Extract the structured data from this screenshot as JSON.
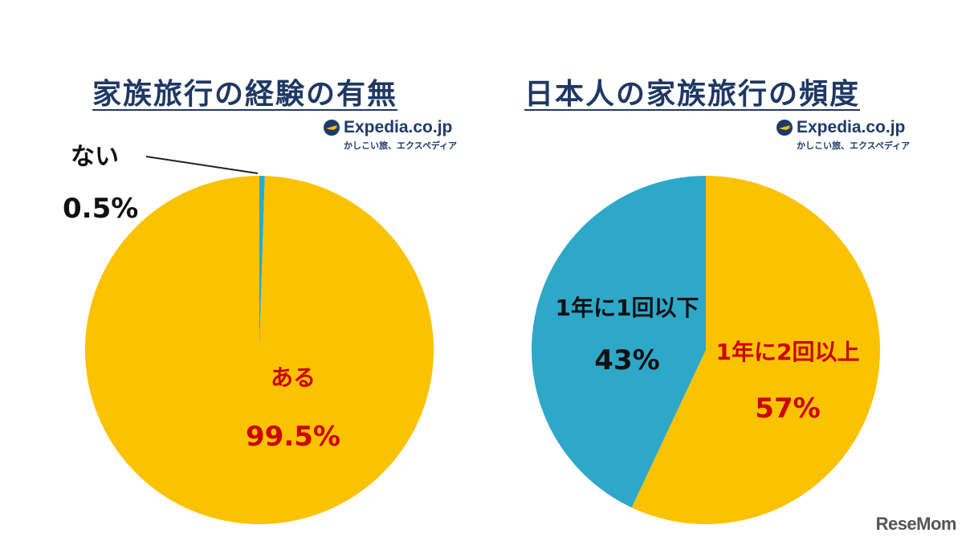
{
  "colors": {
    "orange": "#fbc200",
    "teal": "#2ea8c9",
    "label_red": "#cc0000",
    "label_dark": "#111111",
    "title": "#1f3864"
  },
  "logo": {
    "name": "Expedia.co.jp",
    "tagline": "かしこい旅、エクスペディア",
    "icon": "plane-globe-icon"
  },
  "watermark": "ReseMom",
  "chart_data": [
    {
      "type": "pie",
      "title": "家族旅行の経験の有無",
      "slices": [
        {
          "label": "ない",
          "value": 0.5,
          "display": "0.5%",
          "color": "#2ea8c9",
          "label_position": "outside"
        },
        {
          "label": "ある",
          "value": 99.5,
          "display": "99.5%",
          "color": "#fbc200",
          "label_position": "inside"
        }
      ]
    },
    {
      "type": "pie",
      "title": "日本人の家族旅行の頻度",
      "slices": [
        {
          "label": "1年に2回以上",
          "value": 57,
          "display": "57%",
          "color": "#fbc200",
          "label_position": "inside"
        },
        {
          "label": "1年に1回以下",
          "value": 43,
          "display": "43%",
          "color": "#2ea8c9",
          "label_position": "inside"
        }
      ]
    }
  ]
}
